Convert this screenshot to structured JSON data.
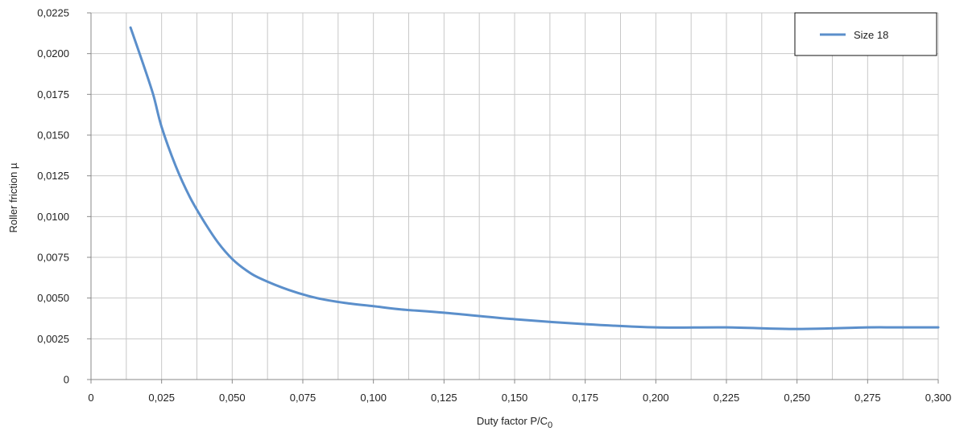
{
  "chart_data": {
    "type": "line",
    "title": "",
    "xlabel": "Duty factor P/C",
    "xlabel_subscript": "0",
    "ylabel": "Roller friction µ",
    "xlim": [
      0,
      0.3
    ],
    "ylim": [
      0,
      0.0225
    ],
    "grid": true,
    "legend_position": "top-right",
    "x_ticks": [
      "0",
      "0,025",
      "0,050",
      "0,075",
      "0,100",
      "0,125",
      "0,150",
      "0,175",
      "0,200",
      "0,225",
      "0,250",
      "0,275",
      "0,300"
    ],
    "y_ticks": [
      "0",
      "0,0025",
      "0,0050",
      "0,0075",
      "0,0100",
      "0,0125",
      "0,0150",
      "0,0175",
      "0,0200",
      "0,0225"
    ],
    "colors": {
      "series": "#5b8fcb",
      "grid": "#c8c8c8",
      "axis": "#888888"
    },
    "series": [
      {
        "name": "Size 18",
        "x": [
          0.014,
          0.018,
          0.022,
          0.025,
          0.03,
          0.035,
          0.04,
          0.045,
          0.05,
          0.055,
          0.06,
          0.07,
          0.08,
          0.09,
          0.1,
          0.11,
          0.125,
          0.15,
          0.175,
          0.2,
          0.225,
          0.25,
          0.275,
          0.285,
          0.3
        ],
        "values": [
          0.0216,
          0.0196,
          0.0175,
          0.0155,
          0.0131,
          0.0112,
          0.0097,
          0.0084,
          0.0074,
          0.0067,
          0.0062,
          0.0055,
          0.005,
          0.0047,
          0.0045,
          0.0043,
          0.0041,
          0.0037,
          0.0034,
          0.0032,
          0.0032,
          0.0031,
          0.0032,
          0.0032,
          0.0032
        ]
      }
    ]
  }
}
